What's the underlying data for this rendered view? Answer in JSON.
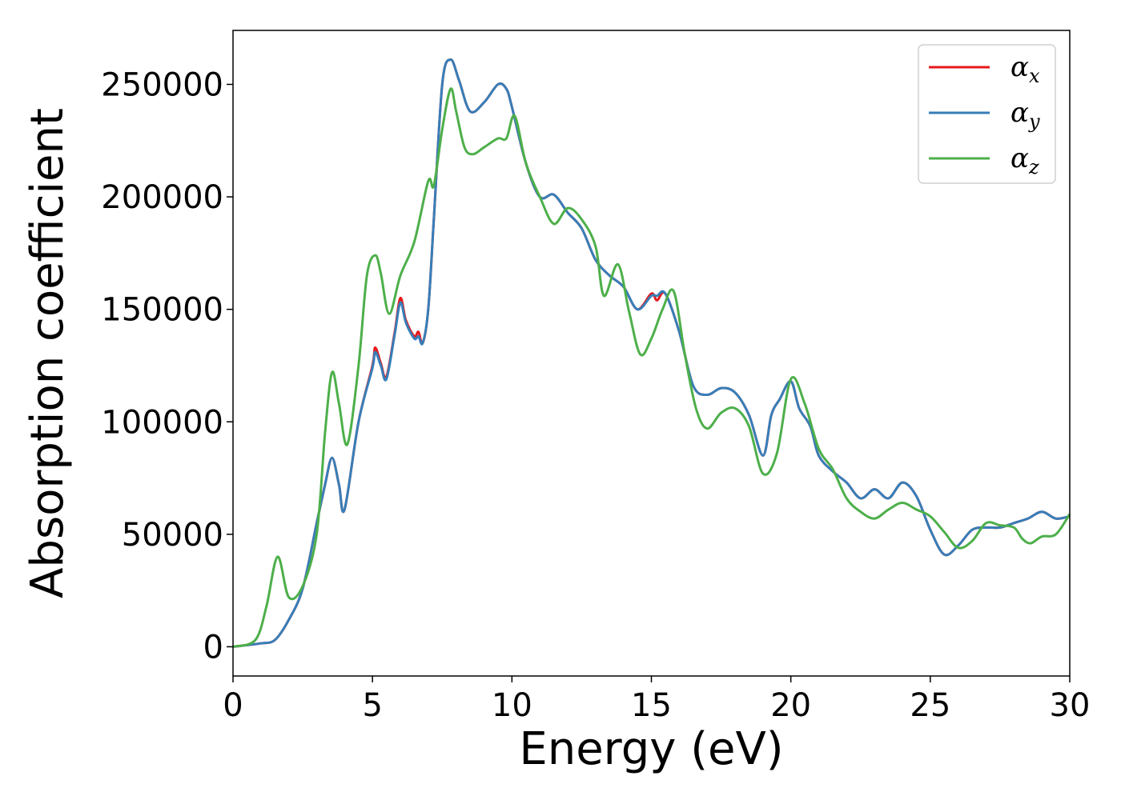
{
  "chart_data": {
    "type": "line",
    "title": "",
    "xlabel": "Energy (eV)",
    "ylabel": "Absorption coefficient",
    "xlim": [
      0,
      30
    ],
    "ylim": [
      -13000,
      274000
    ],
    "xticks": [
      0,
      5,
      10,
      15,
      20,
      25,
      30
    ],
    "yticks": [
      0,
      50000,
      100000,
      150000,
      200000,
      250000
    ],
    "grid": false,
    "legend_position": "top-right",
    "series": [
      {
        "name": "α",
        "subscript": "x",
        "color": "#e41a1c",
        "x": [
          0,
          1,
          1.5,
          2,
          2.5,
          3,
          3.3,
          3.55,
          3.8,
          4,
          4.5,
          5,
          5.1,
          5.3,
          5.5,
          5.8,
          6,
          6.2,
          6.5,
          6.65,
          6.8,
          7,
          7.2,
          7.5,
          7.8,
          8.1,
          8.5,
          9,
          9.5,
          9.8,
          10,
          10.5,
          11,
          11.5,
          12,
          12.5,
          13,
          13.5,
          14,
          14.5,
          15,
          15.2,
          15.5,
          16,
          16.5,
          17,
          17.5,
          18,
          18.5,
          19,
          19.3,
          19.6,
          20,
          20.3,
          20.7,
          21,
          21.5,
          22,
          22.5,
          23,
          23.5,
          24,
          24.5,
          25,
          25.5,
          26,
          26.5,
          27,
          27.5,
          28,
          28.5,
          29,
          29.5,
          30
        ],
        "values": [
          0,
          1500,
          3000,
          12000,
          26000,
          55000,
          72000,
          84000,
          72000,
          61000,
          100000,
          125000,
          133000,
          126000,
          120000,
          140000,
          155000,
          145000,
          138000,
          140000,
          135000,
          150000,
          190000,
          250000,
          261000,
          252000,
          238000,
          242000,
          250000,
          248000,
          240000,
          215000,
          200000,
          201000,
          193000,
          186000,
          172000,
          165000,
          160000,
          150000,
          157000,
          154000,
          157000,
          140000,
          116000,
          112000,
          115000,
          113000,
          103000,
          85000,
          103000,
          110000,
          118000,
          106000,
          98000,
          85000,
          78000,
          73000,
          66000,
          70000,
          66000,
          73000,
          67000,
          52000,
          41000,
          45000,
          52000,
          53000,
          53000,
          55000,
          57000,
          60000,
          57000,
          58000
        ]
      },
      {
        "name": "α",
        "subscript": "y",
        "color": "#377eb8",
        "x": [
          0,
          1,
          1.5,
          2,
          2.5,
          3,
          3.3,
          3.55,
          3.8,
          4,
          4.5,
          5,
          5.1,
          5.3,
          5.5,
          5.8,
          6,
          6.2,
          6.5,
          6.65,
          6.8,
          7,
          7.2,
          7.5,
          7.8,
          8.1,
          8.5,
          9,
          9.5,
          9.8,
          10,
          10.5,
          11,
          11.5,
          12,
          12.5,
          13,
          13.5,
          14,
          14.5,
          15,
          15.2,
          15.5,
          16,
          16.5,
          17,
          17.5,
          18,
          18.5,
          19,
          19.3,
          19.6,
          20,
          20.3,
          20.7,
          21,
          21.5,
          22,
          22.5,
          23,
          23.5,
          24,
          24.5,
          25,
          25.5,
          26,
          26.5,
          27,
          27.5,
          28,
          28.5,
          29,
          29.5,
          30
        ],
        "values": [
          0,
          1500,
          3000,
          12000,
          26000,
          55000,
          72000,
          84000,
          72000,
          61000,
          100000,
          124000,
          131000,
          125000,
          119000,
          139000,
          153000,
          144000,
          137000,
          138000,
          135000,
          150000,
          190000,
          250000,
          261000,
          252000,
          238000,
          242000,
          250000,
          248000,
          240000,
          215000,
          200000,
          201000,
          193000,
          186000,
          172000,
          165000,
          160000,
          150000,
          156000,
          156000,
          157000,
          140000,
          116000,
          112000,
          115000,
          113000,
          103000,
          85000,
          103000,
          110000,
          118000,
          106000,
          98000,
          85000,
          78000,
          73000,
          66000,
          70000,
          66000,
          73000,
          67000,
          52000,
          41000,
          45000,
          52000,
          53000,
          53000,
          55000,
          57000,
          60000,
          57000,
          58000
        ]
      },
      {
        "name": "α",
        "subscript": "z",
        "color": "#4daf4a",
        "x": [
          0,
          0.8,
          1.2,
          1.6,
          2,
          2.5,
          3,
          3.3,
          3.55,
          3.8,
          4.1,
          4.5,
          4.8,
          5.1,
          5.3,
          5.6,
          6,
          6.5,
          7,
          7.2,
          7.5,
          7.8,
          8,
          8.3,
          8.6,
          9,
          9.5,
          9.8,
          10.1,
          10.5,
          11,
          11.5,
          12,
          12.5,
          13,
          13.3,
          13.8,
          14.2,
          14.6,
          15,
          15.4,
          15.8,
          16.2,
          16.6,
          17,
          17.5,
          18,
          18.5,
          19,
          19.5,
          20,
          20.5,
          21,
          21.5,
          22,
          22.5,
          23,
          23.5,
          24,
          24.5,
          25,
          25.5,
          26,
          26.5,
          27,
          27.5,
          28,
          28.3,
          28.6,
          29,
          29.5,
          30
        ],
        "values": [
          0,
          3000,
          18000,
          40000,
          22000,
          27000,
          50000,
          95000,
          122000,
          108000,
          90000,
          125000,
          165000,
          174000,
          166000,
          148000,
          165000,
          180000,
          207000,
          205000,
          230000,
          248000,
          238000,
          222000,
          219000,
          222000,
          226000,
          226000,
          236000,
          215000,
          200000,
          188000,
          195000,
          190000,
          178000,
          156000,
          170000,
          149000,
          130000,
          137000,
          150000,
          158000,
          130000,
          106000,
          97000,
          104000,
          106000,
          98000,
          77000,
          86000,
          119000,
          108000,
          88000,
          79000,
          66000,
          60000,
          57000,
          61000,
          64000,
          61000,
          58000,
          51000,
          44000,
          47000,
          55000,
          54000,
          53000,
          48000,
          46000,
          49000,
          50000,
          59000
        ]
      }
    ]
  }
}
